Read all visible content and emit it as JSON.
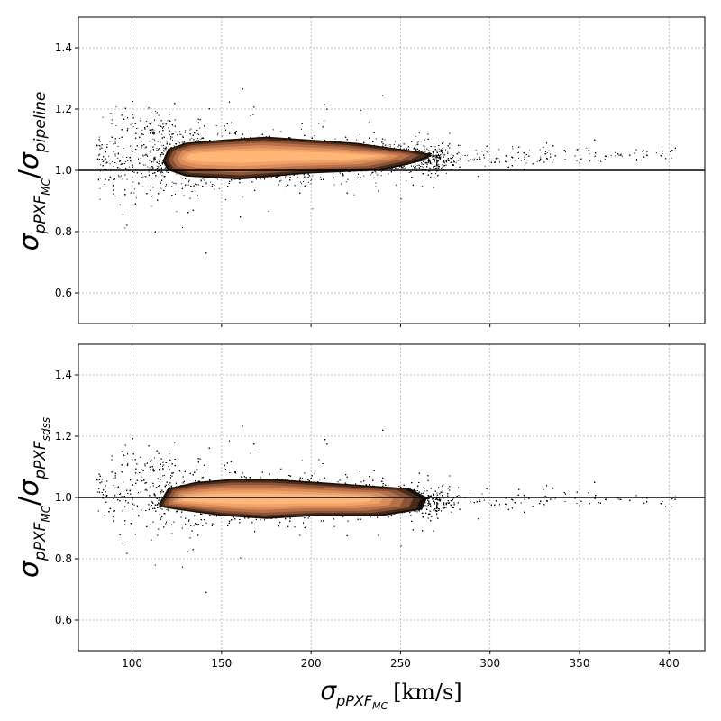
{
  "chart_data": [
    {
      "type": "scatter",
      "panel": "top",
      "ylabel": {
        "sigma": "σ",
        "num_sub": "pPXF",
        "num_subsub": "MC",
        "slash": "/",
        "den_sub": "pipeline"
      },
      "xlim": [
        70,
        420
      ],
      "ylim": [
        0.5,
        1.5
      ],
      "xticks": [
        100,
        150,
        200,
        250,
        300,
        350,
        400
      ],
      "yticks": [
        0.6,
        0.8,
        1.0,
        1.2,
        1.4
      ],
      "ytick_labels": [
        "0.6",
        "0.8",
        "1.0",
        "1.2",
        "1.4"
      ],
      "show_xtick_labels": false,
      "reference_line_y": 1.0,
      "grid": true,
      "points_style": "dense black scatter with copper density contours",
      "density_core": {
        "x": [
          117,
          120,
          130,
          150,
          175,
          200,
          225,
          250,
          262,
          268,
          262,
          240,
          200,
          160,
          130,
          120
        ],
        "y": [
          1.03,
          1.07,
          1.09,
          1.1,
          1.11,
          1.1,
          1.09,
          1.07,
          1.06,
          1.05,
          1.03,
          1.0,
          0.99,
          0.97,
          0.98,
          1.0
        ]
      },
      "scatter_envelope": {
        "x_center": [
          80,
          100,
          125,
          150,
          175,
          200,
          225,
          250,
          275,
          300,
          330,
          360,
          400
        ],
        "y_center": [
          1.04,
          1.05,
          1.05,
          1.04,
          1.04,
          1.04,
          1.04,
          1.04,
          1.04,
          1.04,
          1.05,
          1.05,
          1.06
        ],
        "y_spread": [
          0.12,
          0.14,
          0.1,
          0.08,
          0.07,
          0.06,
          0.05,
          0.045,
          0.04,
          0.035,
          0.03,
          0.025,
          0.02
        ]
      }
    },
    {
      "type": "scatter",
      "panel": "bottom",
      "ylabel": {
        "sigma": "σ",
        "num_sub": "pPXF",
        "num_subsub": "MC",
        "slash": "/",
        "den_sub": "pPXF",
        "den_subsub": "sdss"
      },
      "xlabel": {
        "sigma": "σ",
        "sub": "pPXF",
        "subsub": "MC",
        "unit": "[km/s]"
      },
      "xlim": [
        70,
        420
      ],
      "ylim": [
        0.5,
        1.5
      ],
      "xticks": [
        100,
        150,
        200,
        250,
        300,
        350,
        400
      ],
      "xtick_labels": [
        "100",
        "150",
        "200",
        "250",
        "300",
        "350",
        "400"
      ],
      "yticks": [
        0.6,
        0.8,
        1.0,
        1.2,
        1.4
      ],
      "ytick_labels": [
        "0.6",
        "0.8",
        "1.0",
        "1.2",
        "1.4"
      ],
      "reference_line_y": 1.0,
      "grid": true,
      "points_style": "dense black scatter with copper density contours",
      "density_core": {
        "x": [
          115,
          120,
          135,
          155,
          180,
          205,
          230,
          255,
          265,
          262,
          240,
          205,
          175,
          150,
          125,
          115
        ],
        "y": [
          0.98,
          1.03,
          1.05,
          1.06,
          1.06,
          1.05,
          1.04,
          1.03,
          1.0,
          0.96,
          0.94,
          0.94,
          0.93,
          0.94,
          0.96,
          0.97
        ]
      },
      "scatter_envelope": {
        "x_center": [
          80,
          100,
          125,
          150,
          175,
          200,
          225,
          250,
          275,
          300,
          330,
          360,
          400
        ],
        "y_center": [
          1.02,
          1.03,
          1.01,
          1.0,
          1.0,
          1.0,
          1.0,
          0.99,
          0.99,
          0.99,
          1.0,
          1.0,
          0.99
        ],
        "y_spread": [
          0.11,
          0.13,
          0.1,
          0.08,
          0.075,
          0.065,
          0.055,
          0.05,
          0.04,
          0.035,
          0.03,
          0.025,
          0.02
        ]
      }
    }
  ],
  "colors": {
    "points": "#000000",
    "density_outer": "#1a0f08",
    "density_mid": "#8a5236",
    "density_inner": "#d98c5c",
    "density_peak": "#ffb677",
    "grid": "#b0b0b0",
    "reference_line": "#000000"
  }
}
